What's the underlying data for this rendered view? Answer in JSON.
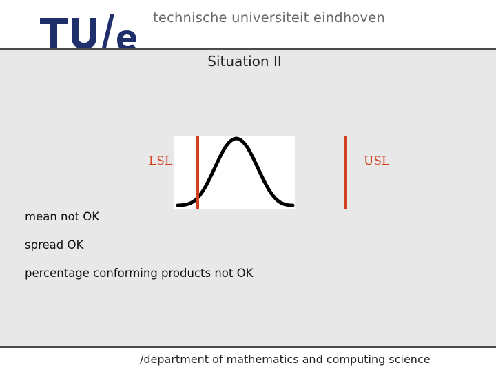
{
  "header": {
    "logo_text": "TU/e",
    "university_name": "technische universiteit eindhoven"
  },
  "slide": {
    "title": "Situation II",
    "lsl_label": "LSL",
    "usl_label": "USL",
    "bullets": [
      "mean not OK",
      "spread OK",
      "percentage conforming products not OK"
    ]
  },
  "footer": {
    "department": "/department of mathematics and computing science"
  },
  "colors": {
    "logo": "#1f2f6b",
    "limits": "#d2401e",
    "background": "#e8e8e8"
  }
}
